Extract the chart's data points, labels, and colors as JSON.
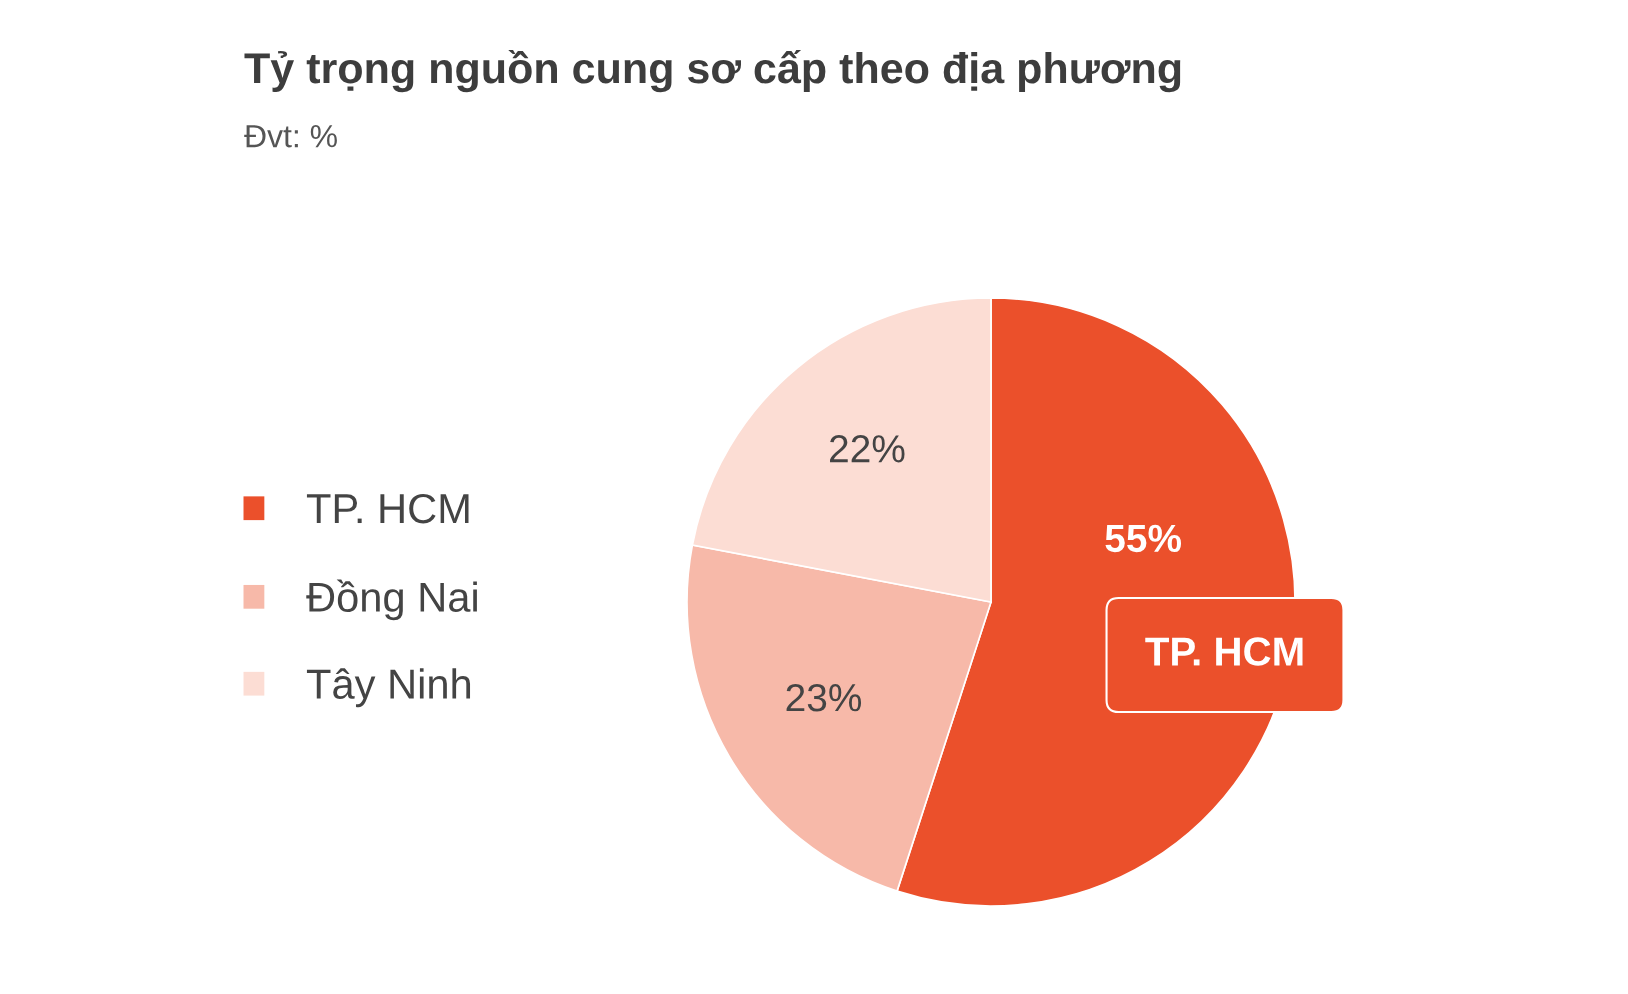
{
  "chart_data": {
    "type": "pie",
    "title": "Tỷ trọng nguồn cung sơ cấp theo địa phương",
    "subtitle": "Đvt: %",
    "categories": [
      "TP. HCM",
      "Đồng Nai",
      "Tây Ninh"
    ],
    "values": [
      55,
      23,
      22
    ],
    "colors": [
      "#eb502b",
      "#f7b9a9",
      "#fcddd4"
    ],
    "value_labels": [
      "55%",
      "23%",
      "22%"
    ],
    "legend": "left",
    "annotations": [
      "TP. HCM"
    ]
  }
}
